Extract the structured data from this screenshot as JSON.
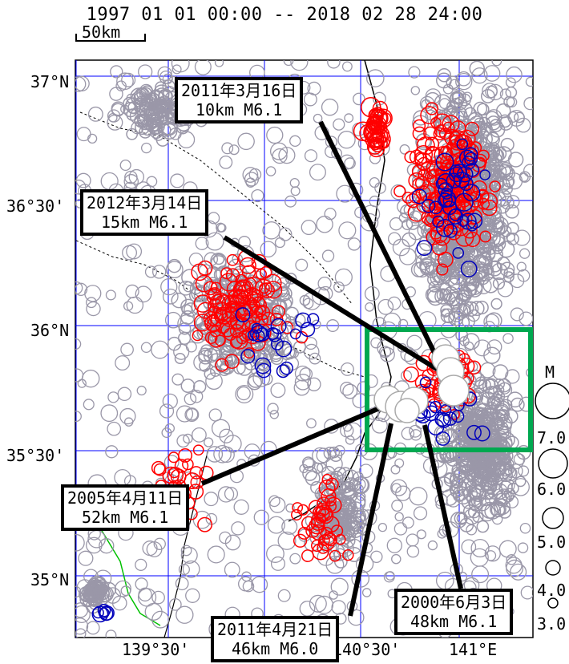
{
  "title": "1997 01 01 00:00 -- 2018 02 28 24:00",
  "scale_bar": "50km",
  "lat_labels": [
    "37°N",
    "36°30'",
    "36°N",
    "35°30'",
    "35°N"
  ],
  "lon_labels": [
    "139°30'",
    "140°30'",
    "141°E"
  ],
  "legend": {
    "title": "M",
    "magnitudes": [
      "7.0",
      "6.0",
      "5.0",
      "4.0",
      "3.0"
    ]
  },
  "colors": {
    "shallow": "#ff0000",
    "medium": "#0000bb",
    "deep": "#9a97a8",
    "grid": "#0000ff",
    "highlight_box": "#00a850",
    "prefecture_line": "#00c000"
  },
  "callouts": [
    {
      "date": "2011年3月16日",
      "detail": "10km   M6.1"
    },
    {
      "date": "2012年3月14日",
      "detail": "15km   M6.1"
    },
    {
      "date": "2005年4月11日",
      "detail": "52km   M6.1"
    },
    {
      "date": "2011年4月21日",
      "detail": "46km  M6.0"
    },
    {
      "date": "2000年6月3日",
      "detail": "48km   M6.1"
    }
  ]
}
